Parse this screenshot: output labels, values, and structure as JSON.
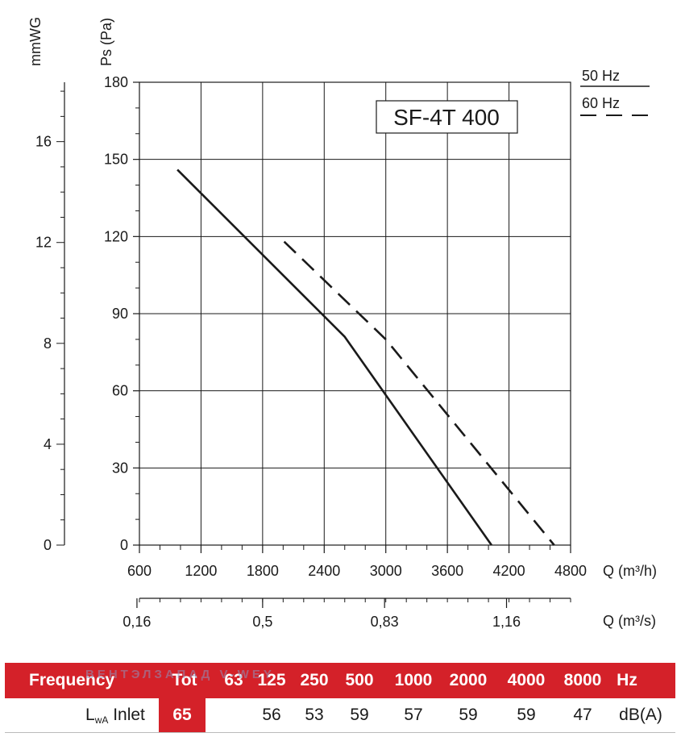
{
  "chart_data": {
    "type": "line",
    "title": "SF-4T 400",
    "xlabel": "Q (m³/h)",
    "ylabel": "Ps (Pa)",
    "y2label": "mmWG",
    "x2label": "Q (m³/s)",
    "xlim": [
      600,
      4800
    ],
    "ylim": [
      0,
      180
    ],
    "x_ticks": [
      "600",
      "1200",
      "1800",
      "2400",
      "3000",
      "3600",
      "4200",
      "4800"
    ],
    "y_ticks": [
      "0",
      "30",
      "60",
      "90",
      "120",
      "150",
      "180"
    ],
    "mmwg_ticks": [
      "0",
      "4",
      "8",
      "12",
      "16"
    ],
    "m3s_ticks": [
      "0,16",
      "0,5",
      "0,83",
      "1,16"
    ],
    "grid": true,
    "legend_position": "top-right",
    "series": [
      {
        "name": "50 Hz",
        "style": "solid",
        "color": "#1a1a1a",
        "x": [
          970,
          2600,
          4030
        ],
        "y": [
          146,
          81,
          0
        ]
      },
      {
        "name": "60 Hz",
        "style": "dashed",
        "color": "#1a1a1a",
        "x": [
          2010,
          3000,
          4640
        ],
        "y": [
          118,
          80,
          0
        ]
      }
    ]
  },
  "sound_table": {
    "header": {
      "label": "Frequency",
      "tot": "Tot",
      "bands": [
        "63",
        "125",
        "250",
        "500",
        "1000",
        "2000",
        "4000",
        "8000"
      ],
      "unit": "Hz"
    },
    "row": {
      "label_main": "L",
      "label_sub": "wA",
      "label_rest": " Inlet",
      "tot": "65",
      "values": [
        "",
        "56",
        "53",
        "59",
        "57",
        "59",
        "59",
        "47"
      ],
      "unit": "dB(A)"
    },
    "watermark": "ВЕНТЭЛЗАПАД  V-WEY"
  },
  "colors": {
    "accent": "#d42129",
    "ink": "#1a1a1a",
    "grid": "#1a1a1a"
  }
}
